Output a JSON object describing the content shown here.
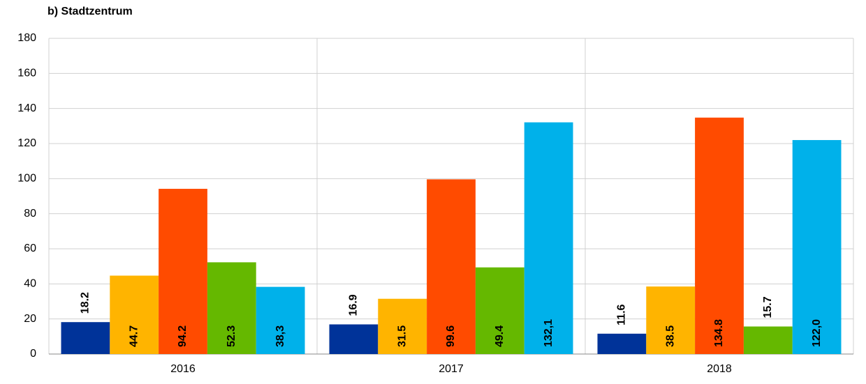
{
  "chart_data": {
    "type": "bar",
    "title": "b) Stadtzentrum",
    "categories": [
      "2016",
      "2017",
      "2018"
    ],
    "series": [
      {
        "color": "#003399",
        "values": [
          18.2,
          16.9,
          11.6
        ],
        "value_labels": [
          "18.2",
          "16.9",
          "11.6"
        ]
      },
      {
        "color": "#ffb400",
        "values": [
          44.7,
          31.5,
          38.5
        ],
        "value_labels": [
          "44.7",
          "31.5",
          "38.5"
        ]
      },
      {
        "color": "#ff4b00",
        "values": [
          94.2,
          99.6,
          134.8
        ],
        "value_labels": [
          "94.2",
          "99.6",
          "134.8"
        ]
      },
      {
        "color": "#65b800",
        "values": [
          52.3,
          49.4,
          15.7
        ],
        "value_labels": [
          "52.3",
          "49.4",
          "15.7"
        ]
      },
      {
        "color": "#00b1ea",
        "values": [
          38.3,
          132.1,
          122.0
        ],
        "value_labels": [
          "38,3",
          "132,1",
          "122,0"
        ]
      }
    ],
    "ylim": [
      0,
      180
    ],
    "yticks": [
      0,
      20,
      40,
      60,
      80,
      100,
      120,
      140,
      160,
      180
    ],
    "grid": true
  }
}
